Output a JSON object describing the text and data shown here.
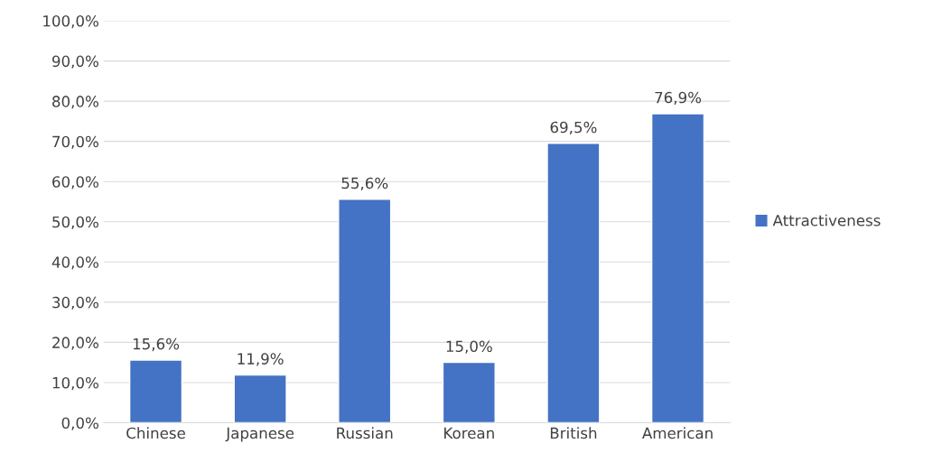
{
  "chart_data": {
    "type": "bar",
    "categories": [
      "Chinese",
      "Japanese",
      "Russian",
      "Korean",
      "British",
      "American"
    ],
    "series": [
      {
        "name": "Attractiveness",
        "color": "#4472c4",
        "values": [
          15.6,
          11.9,
          55.6,
          15.0,
          69.5,
          76.9
        ],
        "value_labels": [
          "15,6%",
          "11,9%",
          "55,6%",
          "15,0%",
          "69,5%",
          "76,9%"
        ]
      }
    ],
    "ylim": [
      0,
      100
    ],
    "yticks": [
      {
        "value": 0,
        "label": "0,0%"
      },
      {
        "value": 10,
        "label": "10,0%"
      },
      {
        "value": 20,
        "label": "20,0%"
      },
      {
        "value": 30,
        "label": "30,0%"
      },
      {
        "value": 40,
        "label": "40,0%"
      },
      {
        "value": 50,
        "label": "50,0%"
      },
      {
        "value": 60,
        "label": "60,0%"
      },
      {
        "value": 70,
        "label": "70,0%"
      },
      {
        "value": 80,
        "label": "80,0%"
      },
      {
        "value": 90,
        "label": "90,0%"
      },
      {
        "value": 100,
        "label": "100,0%"
      }
    ],
    "grid": "y",
    "legend": "right"
  }
}
